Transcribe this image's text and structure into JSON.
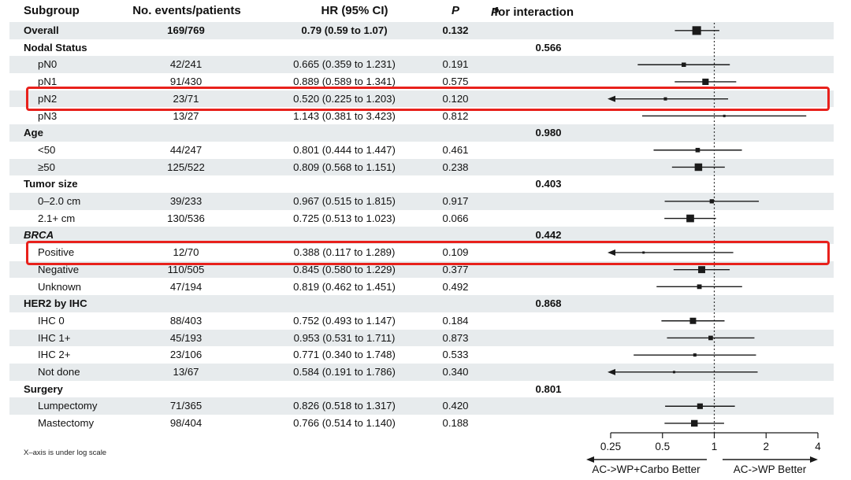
{
  "header": {
    "subgroup": "Subgroup",
    "events": "No. events/patients",
    "hr_ci": "HR (95% CI)",
    "p": "P",
    "p_int_p": "P",
    "p_int_rest": "for interaction"
  },
  "footnote": "X–axis is under log scale",
  "colors": {
    "row_shade": "#e7ebed",
    "highlight": "#e8211c",
    "line": "#1a1a1a",
    "text": "#111111"
  },
  "axis": {
    "scale": "log",
    "min": 0.25,
    "max": 4,
    "ref_line": 1,
    "tick_labels": [
      "0.25",
      "0.5",
      "1",
      "2",
      "4"
    ],
    "tick_values": [
      0.25,
      0.5,
      1,
      2,
      4
    ],
    "left_label": "AC->WP+Carbo Better",
    "right_label": "AC->WP Better"
  },
  "chart_data": {
    "type": "scatter",
    "variant": "forest-plot",
    "xscale": "log",
    "xlim": [
      0.25,
      4
    ],
    "xticks": [
      "0.25",
      "0.5",
      "1",
      "2",
      "4"
    ],
    "ref_line": 1,
    "legend_left": "AC->WP+Carbo Better",
    "legend_right": "AC->WP Better",
    "rows": [
      {
        "label": "Overall",
        "group": false,
        "bold": true,
        "events": "169/769",
        "hr_ci": "0.79 (0.59 to 1.07)",
        "p": "0.132",
        "p_int": "",
        "hr": 0.79,
        "lo": 0.59,
        "hi": 1.07,
        "n_events": 169,
        "clip_lo": false,
        "highlight": false
      },
      {
        "label": "Nodal Status",
        "group": true,
        "p_int": "0.566"
      },
      {
        "label": "pN0",
        "events": "42/241",
        "hr_ci": "0.665 (0.359 to 1.231)",
        "p": "0.191",
        "hr": 0.665,
        "lo": 0.359,
        "hi": 1.231,
        "n_events": 42,
        "clip_lo": false,
        "highlight": false
      },
      {
        "label": "pN1",
        "events": "91/430",
        "hr_ci": "0.889 (0.589 to 1.341)",
        "p": "0.575",
        "hr": 0.889,
        "lo": 0.589,
        "hi": 1.341,
        "n_events": 91,
        "clip_lo": false,
        "highlight": false
      },
      {
        "label": "pN2",
        "events": "23/71",
        "hr_ci": "0.520 (0.225 to 1.203)",
        "p": "0.120",
        "hr": 0.52,
        "lo": 0.225,
        "hi": 1.203,
        "n_events": 23,
        "clip_lo": true,
        "highlight": true
      },
      {
        "label": "pN3",
        "events": "13/27",
        "hr_ci": "1.143 (0.381 to 3.423)",
        "p": "0.812",
        "hr": 1.143,
        "lo": 0.381,
        "hi": 3.423,
        "n_events": 13,
        "clip_lo": false,
        "highlight": false
      },
      {
        "label": "Age",
        "group": true,
        "p_int": "0.980"
      },
      {
        "label": "<50",
        "events": "44/247",
        "hr_ci": "0.801 (0.444 to 1.447)",
        "p": "0.461",
        "hr": 0.801,
        "lo": 0.444,
        "hi": 1.447,
        "n_events": 44,
        "clip_lo": false,
        "highlight": false
      },
      {
        "label": "≥50",
        "events": "125/522",
        "hr_ci": "0.809 (0.568 to 1.151)",
        "p": "0.238",
        "hr": 0.809,
        "lo": 0.568,
        "hi": 1.151,
        "n_events": 125,
        "clip_lo": false,
        "highlight": false
      },
      {
        "label": "Tumor size",
        "group": true,
        "p_int": "0.403"
      },
      {
        "label": "0–2.0 cm",
        "events": "39/233",
        "hr_ci": "0.967 (0.515 to 1.815)",
        "p": "0.917",
        "hr": 0.967,
        "lo": 0.515,
        "hi": 1.815,
        "n_events": 39,
        "clip_lo": false,
        "highlight": false
      },
      {
        "label": "2.1+ cm",
        "events": "130/536",
        "hr_ci": "0.725 (0.513 to 1.023)",
        "p": "0.066",
        "hr": 0.725,
        "lo": 0.513,
        "hi": 1.023,
        "n_events": 130,
        "clip_lo": false,
        "highlight": false
      },
      {
        "label": "BRCA",
        "group": true,
        "italic": true,
        "p_int": "0.442"
      },
      {
        "label": "Positive",
        "events": "12/70",
        "hr_ci": "0.388 (0.117 to 1.289)",
        "p": "0.109",
        "hr": 0.388,
        "lo": 0.117,
        "hi": 1.289,
        "n_events": 12,
        "clip_lo": true,
        "highlight": true
      },
      {
        "label": "Negative",
        "events": "110/505",
        "hr_ci": "0.845 (0.580 to 1.229)",
        "p": "0.377",
        "hr": 0.845,
        "lo": 0.58,
        "hi": 1.229,
        "n_events": 110,
        "clip_lo": false,
        "highlight": false
      },
      {
        "label": "Unknown",
        "events": "47/194",
        "hr_ci": "0.819 (0.462 to 1.451)",
        "p": "0.492",
        "hr": 0.819,
        "lo": 0.462,
        "hi": 1.451,
        "n_events": 47,
        "clip_lo": false,
        "highlight": false
      },
      {
        "label": "HER2 by IHC",
        "group": true,
        "p_int": "0.868"
      },
      {
        "label": "IHC 0",
        "events": "88/403",
        "hr_ci": "0.752 (0.493 to 1.147)",
        "p": "0.184",
        "hr": 0.752,
        "lo": 0.493,
        "hi": 1.147,
        "n_events": 88,
        "clip_lo": false,
        "highlight": false
      },
      {
        "label": "IHC 1+",
        "events": "45/193",
        "hr_ci": "0.953 (0.531 to 1.711)",
        "p": "0.873",
        "hr": 0.953,
        "lo": 0.531,
        "hi": 1.711,
        "n_events": 45,
        "clip_lo": false,
        "highlight": false
      },
      {
        "label": "IHC 2+",
        "events": "23/106",
        "hr_ci": "0.771 (0.340 to 1.748)",
        "p": "0.533",
        "hr": 0.771,
        "lo": 0.34,
        "hi": 1.748,
        "n_events": 23,
        "clip_lo": false,
        "highlight": false
      },
      {
        "label": "Not done",
        "events": "13/67",
        "hr_ci": "0.584 (0.191 to 1.786)",
        "p": "0.340",
        "hr": 0.584,
        "lo": 0.191,
        "hi": 1.786,
        "n_events": 13,
        "clip_lo": true,
        "highlight": false
      },
      {
        "label": "Surgery",
        "group": true,
        "p_int": "0.801"
      },
      {
        "label": "Lumpectomy",
        "events": "71/365",
        "hr_ci": "0.826 (0.518 to 1.317)",
        "p": "0.420",
        "hr": 0.826,
        "lo": 0.518,
        "hi": 1.317,
        "n_events": 71,
        "clip_lo": false,
        "highlight": false
      },
      {
        "label": "Mastectomy",
        "events": "98/404",
        "hr_ci": "0.766 (0.514 to 1.140)",
        "p": "0.188",
        "hr": 0.766,
        "lo": 0.514,
        "hi": 1.14,
        "n_events": 98,
        "clip_lo": false,
        "highlight": false
      }
    ]
  }
}
